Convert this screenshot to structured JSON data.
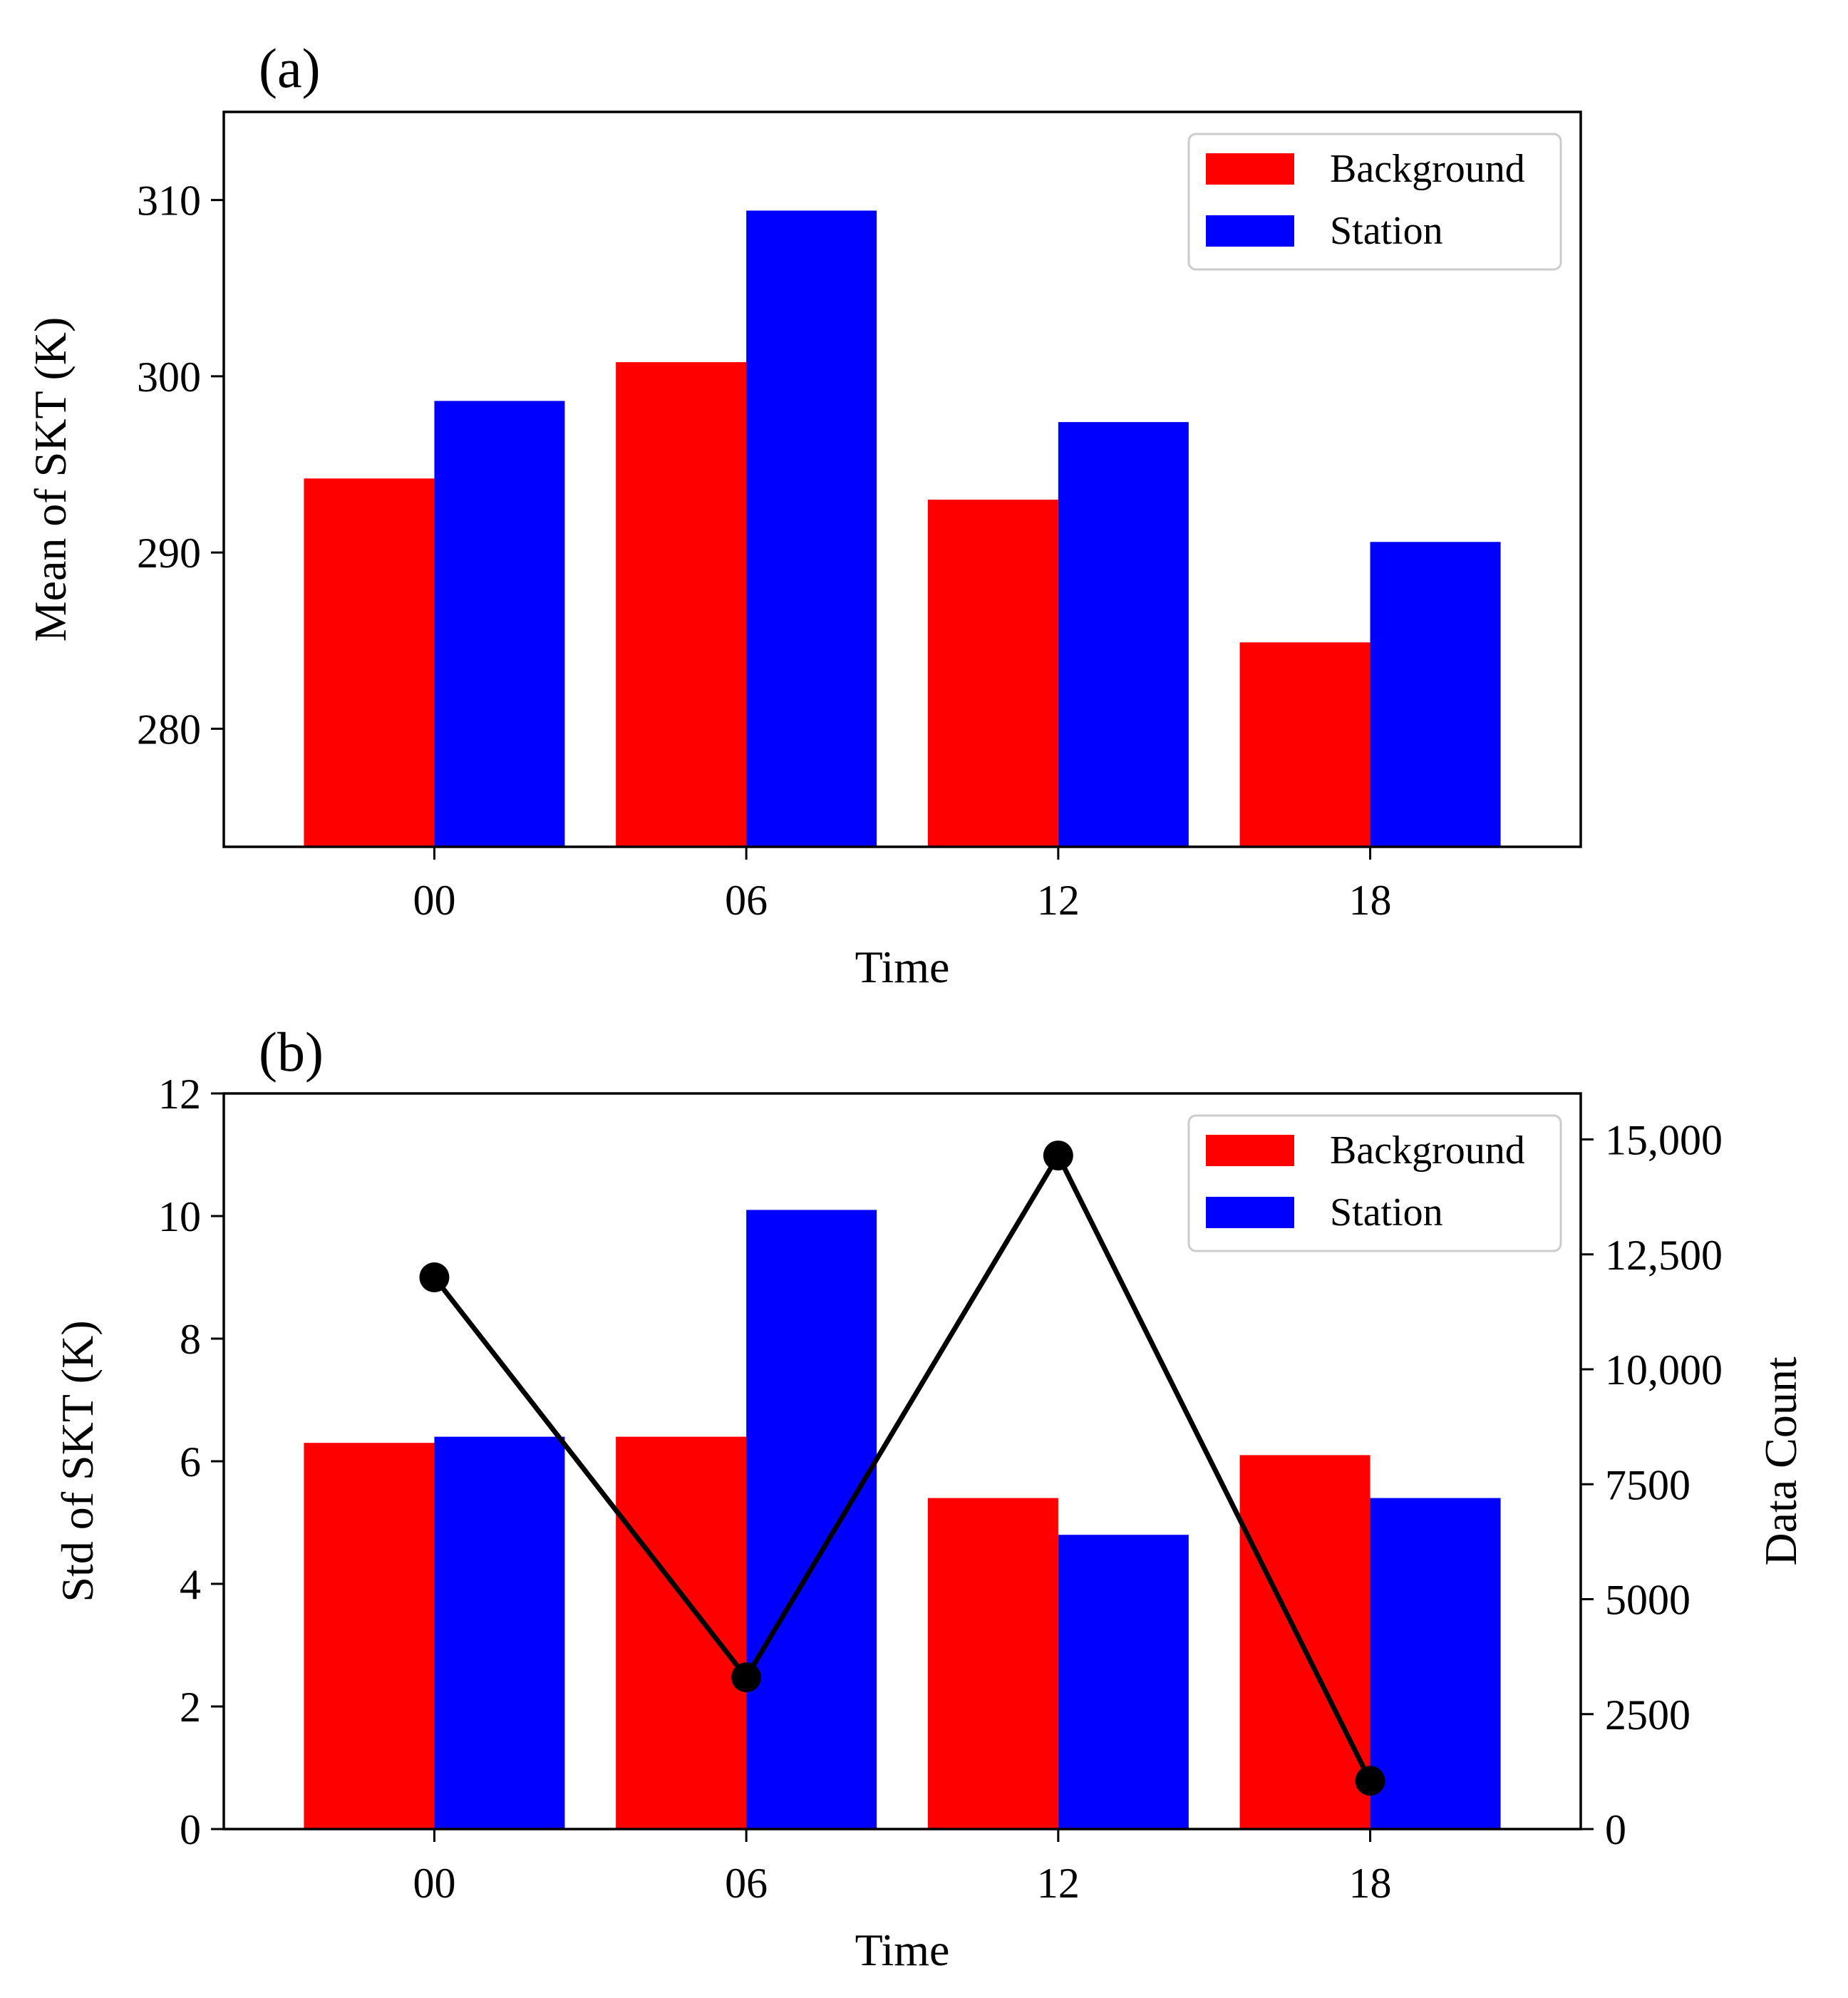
{
  "chart_data": [
    {
      "panel_label": "(a)",
      "type": "bar",
      "categories": [
        "00",
        "06",
        "12",
        "18"
      ],
      "series": [
        {
          "name": "Background",
          "color": "#ff0000",
          "values": [
            294.2,
            300.8,
            293.0,
            284.9
          ]
        },
        {
          "name": "Station",
          "color": "#0000ff",
          "values": [
            298.6,
            309.4,
            297.4,
            290.6
          ]
        }
      ],
      "xlabel": "Time",
      "ylabel": "Mean of SKT (K)",
      "ylim": [
        273.3,
        315.0
      ],
      "yticks": [
        280,
        290,
        300,
        310
      ],
      "ytick_labels": [
        "280",
        "290",
        "300",
        "310"
      ],
      "legend": "top-right",
      "grid": false
    },
    {
      "panel_label": "(b)",
      "type": "bar",
      "categories": [
        "00",
        "06",
        "12",
        "18"
      ],
      "series": [
        {
          "name": "Background",
          "color": "#ff0000",
          "values": [
            6.3,
            6.4,
            5.4,
            6.1
          ]
        },
        {
          "name": "Station",
          "color": "#0000ff",
          "values": [
            6.4,
            10.1,
            4.8,
            5.4
          ]
        }
      ],
      "line_series": {
        "color": "#000000",
        "axis": "right",
        "values": [
          12000,
          3300,
          14650,
          1050
        ]
      },
      "xlabel": "Time",
      "ylabel": "Std of SKT (K)",
      "ylim": [
        0,
        12
      ],
      "yticks": [
        0,
        2,
        4,
        6,
        8,
        10,
        12
      ],
      "ytick_labels": [
        "0",
        "2",
        "4",
        "6",
        "8",
        "10",
        "12"
      ],
      "y2label": "Data Count",
      "y2lim": [
        0,
        16000
      ],
      "y2ticks": [
        0,
        2500,
        5000,
        7500,
        10000,
        12500,
        15000
      ],
      "y2tick_labels": [
        "0",
        "2500",
        "5000",
        "7500",
        "10,000",
        "12,500",
        "15,000"
      ],
      "legend": "top-right",
      "grid": false
    }
  ]
}
